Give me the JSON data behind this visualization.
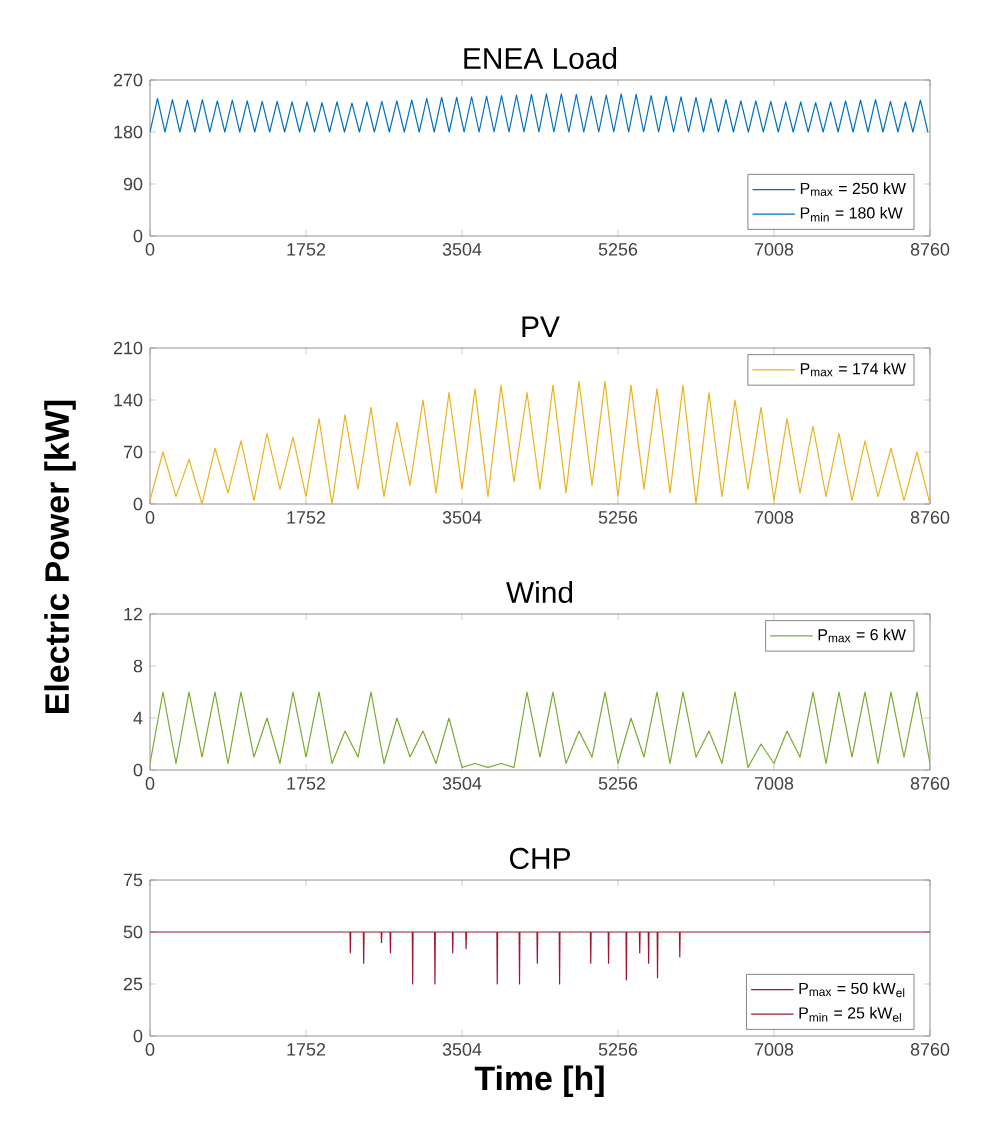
{
  "chart_data": [
    {
      "type": "line",
      "title": "ENEA Load",
      "xlim": [
        0,
        8760
      ],
      "ylim": [
        0,
        270
      ],
      "xticks": [
        0,
        1752,
        3504,
        5256,
        7008,
        8760
      ],
      "yticks": [
        0,
        90,
        180,
        270
      ],
      "legend": "bottom right",
      "annotations": [
        "P$_{min}$ = 180 kW"
      ],
      "series": [
        {
          "name": "P$_{max}$ = 250 kW",
          "color": "#0072bd",
          "x": [
            0,
            84,
            168,
            252,
            336,
            420,
            504,
            588,
            672,
            756,
            840,
            924,
            1008,
            1092,
            1176,
            1260,
            1344,
            1428,
            1512,
            1596,
            1680,
            1764,
            1848,
            1932,
            2016,
            2100,
            2184,
            2268,
            2352,
            2436,
            2520,
            2604,
            2688,
            2772,
            2856,
            2940,
            3024,
            3108,
            3192,
            3276,
            3360,
            3444,
            3528,
            3612,
            3696,
            3780,
            3864,
            3948,
            4032,
            4116,
            4200,
            4284,
            4368,
            4452,
            4536,
            4620,
            4704,
            4788,
            4872,
            4956,
            5040,
            5124,
            5208,
            5292,
            5376,
            5460,
            5544,
            5628,
            5712,
            5796,
            5880,
            5964,
            6048,
            6132,
            6216,
            6300,
            6384,
            6468,
            6552,
            6636,
            6720,
            6804,
            6888,
            6972,
            7056,
            7140,
            7224,
            7308,
            7392,
            7476,
            7560,
            7644,
            7728,
            7812,
            7896,
            7980,
            8064,
            8148,
            8232,
            8316,
            8400,
            8484,
            8568,
            8652,
            8736
          ],
          "values": [
            180,
            238,
            180,
            236,
            180,
            235,
            180,
            236,
            180,
            234,
            180,
            235,
            180,
            234,
            180,
            233,
            180,
            233,
            180,
            232,
            180,
            232,
            180,
            231,
            180,
            232,
            180,
            230,
            180,
            232,
            180,
            233,
            180,
            234,
            180,
            235,
            180,
            238,
            180,
            240,
            180,
            240,
            180,
            241,
            180,
            242,
            180,
            243,
            180,
            244,
            180,
            245,
            180,
            246,
            180,
            246,
            180,
            245,
            180,
            242,
            180,
            244,
            180,
            246,
            180,
            245,
            180,
            243,
            180,
            242,
            180,
            241,
            180,
            240,
            180,
            238,
            180,
            236,
            180,
            234,
            180,
            234,
            180,
            233,
            180,
            232,
            180,
            232,
            180,
            231,
            180,
            232,
            180,
            234,
            180,
            235,
            180,
            236,
            180,
            233,
            180,
            232,
            180,
            235,
            180
          ]
        }
      ]
    },
    {
      "type": "line",
      "title": "PV",
      "ylabel": "Electric Power [kW]",
      "xlim": [
        0,
        8760
      ],
      "ylim": [
        0,
        210
      ],
      "xticks": [
        0,
        1752,
        3504,
        5256,
        7008,
        8760
      ],
      "yticks": [
        0,
        70,
        140,
        210
      ],
      "legend": "top right",
      "series": [
        {
          "name": "P$_{max}$ = 174 kW",
          "color": "#edb120",
          "x": [
            0,
            146,
            292,
            438,
            584,
            730,
            876,
            1022,
            1168,
            1314,
            1460,
            1606,
            1752,
            1898,
            2044,
            2190,
            2336,
            2482,
            2628,
            2774,
            2920,
            3066,
            3212,
            3358,
            3504,
            3650,
            3796,
            3942,
            4088,
            4234,
            4380,
            4526,
            4672,
            4818,
            4964,
            5110,
            5256,
            5402,
            5548,
            5694,
            5840,
            5986,
            6132,
            6278,
            6424,
            6570,
            6716,
            6862,
            7008,
            7154,
            7300,
            7446,
            7592,
            7738,
            7884,
            8030,
            8176,
            8322,
            8468,
            8614,
            8760
          ],
          "values": [
            5,
            70,
            10,
            60,
            0,
            75,
            15,
            85,
            5,
            95,
            20,
            90,
            10,
            115,
            0,
            120,
            20,
            130,
            10,
            110,
            25,
            140,
            15,
            150,
            20,
            155,
            10,
            160,
            30,
            150,
            20,
            160,
            15,
            165,
            25,
            165,
            10,
            160,
            20,
            155,
            15,
            160,
            0,
            150,
            10,
            140,
            20,
            130,
            5,
            115,
            15,
            105,
            10,
            95,
            5,
            85,
            10,
            75,
            5,
            70,
            0
          ]
        }
      ]
    },
    {
      "type": "line",
      "title": "Wind",
      "xlim": [
        0,
        8760
      ],
      "ylim": [
        0,
        12
      ],
      "xticks": [
        0,
        1752,
        3504,
        5256,
        7008,
        8760
      ],
      "yticks": [
        0,
        4,
        8,
        12
      ],
      "legend": "top right",
      "series": [
        {
          "name": "P$_{max}$ = 6 kW",
          "color": "#77ac30",
          "x": [
            0,
            146,
            292,
            438,
            584,
            730,
            876,
            1022,
            1168,
            1314,
            1460,
            1606,
            1752,
            1898,
            2044,
            2190,
            2336,
            2482,
            2628,
            2774,
            2920,
            3066,
            3212,
            3358,
            3504,
            3650,
            3796,
            3942,
            4088,
            4234,
            4380,
            4526,
            4672,
            4818,
            4964,
            5110,
            5256,
            5402,
            5548,
            5694,
            5840,
            5986,
            6132,
            6278,
            6424,
            6570,
            6716,
            6862,
            7008,
            7154,
            7300,
            7446,
            7592,
            7738,
            7884,
            8030,
            8176,
            8322,
            8468,
            8614,
            8760
          ],
          "values": [
            0.5,
            6,
            0.5,
            6,
            1,
            6,
            0.5,
            6,
            1,
            4,
            0.5,
            6,
            1,
            6,
            0.5,
            3,
            1,
            6,
            0.5,
            4,
            1,
            3,
            0.5,
            4,
            0.2,
            0.5,
            0.2,
            0.5,
            0.2,
            6,
            1,
            6,
            0.5,
            3,
            1,
            6,
            0.5,
            4,
            1,
            6,
            0.5,
            6,
            1,
            3,
            0.5,
            6,
            0.2,
            2,
            0.5,
            3,
            1,
            6,
            0.5,
            6,
            1,
            6,
            0.5,
            6,
            1,
            6,
            0.5
          ]
        }
      ]
    },
    {
      "type": "line",
      "title": "CHP",
      "xlabel": "Time [h]",
      "xlim": [
        0,
        8760
      ],
      "ylim": [
        0,
        75
      ],
      "xticks": [
        0,
        1752,
        3504,
        5256,
        7008,
        8760
      ],
      "yticks": [
        0,
        25,
        50,
        75
      ],
      "legend": "bottom right",
      "annotations": [
        "P$_{min}$ = 25 kW$_{el}$"
      ],
      "series": [
        {
          "name": "P$_{max}$ = 50 kW$_{el}$",
          "color": "#a2142f",
          "x": [
            0,
            2246,
            2250,
            2254,
            2396,
            2400,
            2404,
            2596,
            2600,
            2604,
            2696,
            2700,
            2704,
            2946,
            2950,
            2954,
            3196,
            3200,
            3204,
            3396,
            3400,
            3404,
            3546,
            3550,
            3554,
            3896,
            3900,
            3904,
            4146,
            4150,
            4154,
            4346,
            4350,
            4354,
            4596,
            4600,
            4604,
            4946,
            4950,
            4954,
            5146,
            5150,
            5154,
            5346,
            5350,
            5354,
            5496,
            5500,
            5504,
            5596,
            5600,
            5604,
            5696,
            5700,
            5704,
            5946,
            5950,
            5954,
            8760
          ],
          "values": [
            50,
            50,
            40,
            50,
            50,
            35,
            50,
            50,
            45,
            50,
            50,
            40,
            50,
            50,
            25,
            50,
            50,
            25,
            50,
            50,
            40,
            50,
            50,
            42,
            50,
            50,
            25,
            50,
            50,
            25,
            50,
            50,
            35,
            50,
            50,
            25,
            50,
            50,
            35,
            50,
            50,
            35,
            50,
            50,
            27,
            50,
            50,
            40,
            50,
            50,
            35,
            50,
            50,
            28,
            50,
            50,
            38,
            50,
            50
          ]
        }
      ]
    }
  ]
}
